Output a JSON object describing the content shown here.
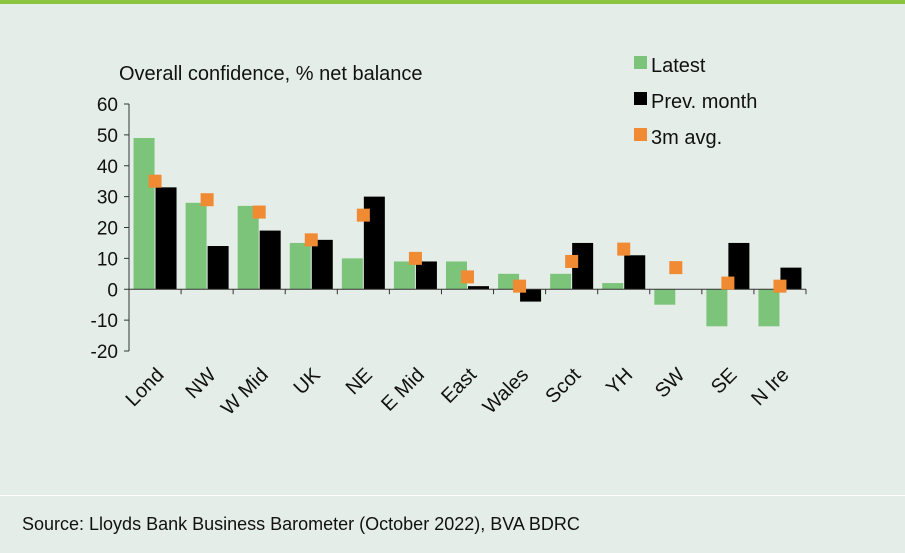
{
  "chart_data": {
    "type": "bar",
    "title": "Overall confidence, % net balance",
    "categories": [
      "Lond",
      "NW",
      "W Mid",
      "UK",
      "NE",
      "E Mid",
      "East",
      "Wales",
      "Scot",
      "YH",
      "SW",
      "SE",
      "N Ire"
    ],
    "series": [
      {
        "name": "Latest",
        "kind": "bar",
        "color": "#7cc47a",
        "values": [
          49,
          28,
          27,
          15,
          10,
          9,
          9,
          5,
          5,
          2,
          -5,
          -12,
          -12
        ]
      },
      {
        "name": "Prev. month",
        "kind": "bar",
        "color": "#000000",
        "values": [
          33,
          14,
          19,
          16,
          30,
          9,
          1,
          -4,
          15,
          11,
          0,
          15,
          7
        ]
      },
      {
        "name": "3m avg.",
        "kind": "marker",
        "color": "#f08a33",
        "values": [
          35,
          29,
          25,
          16,
          24,
          10,
          4,
          1,
          9,
          13,
          7,
          2,
          1
        ]
      }
    ],
    "ylim": [
      -20,
      60
    ],
    "yticks": [
      -20,
      -10,
      0,
      10,
      20,
      30,
      40,
      50,
      60
    ],
    "grid": false,
    "legend_position": "top-right",
    "xlabel": "",
    "ylabel": ""
  },
  "footer": {
    "source": "Source: Lloyds Bank Business Barometer (October 2022), BVA BDRC"
  }
}
